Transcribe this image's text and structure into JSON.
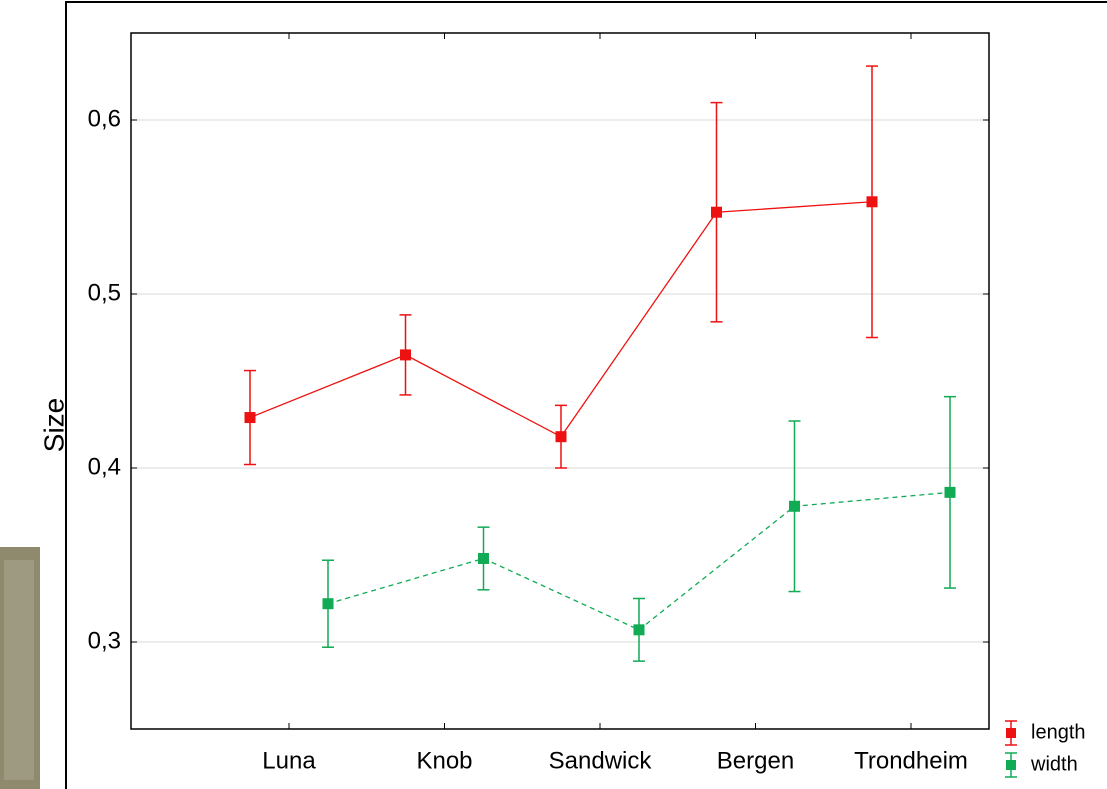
{
  "chart_data": {
    "type": "line",
    "y_label": "Size",
    "categories": [
      "Luna",
      "Knob",
      "Sandwick",
      "Bergen",
      "Trondheim"
    ],
    "series": [
      {
        "name": "length",
        "color": "#ee1111",
        "dashed": false,
        "values": [
          0.429,
          0.465,
          0.418,
          0.547,
          0.553
        ],
        "errors": [
          0.027,
          0.023,
          0.018,
          0.063,
          0.078
        ]
      },
      {
        "name": "width",
        "color": "#11aa55",
        "dashed": true,
        "values": [
          0.322,
          0.348,
          0.307,
          0.378,
          0.386
        ],
        "errors": [
          0.025,
          0.018,
          0.018,
          0.049,
          0.055
        ]
      }
    ],
    "ylim": [
      0.25,
      0.65
    ],
    "yticks": [
      {
        "value": 0.3,
        "label": "0,3"
      },
      {
        "value": 0.4,
        "label": "0,4"
      },
      {
        "value": 0.5,
        "label": "0,5"
      },
      {
        "value": 0.6,
        "label": "0,6"
      }
    ],
    "grid": true,
    "legend": "bottom-right"
  }
}
